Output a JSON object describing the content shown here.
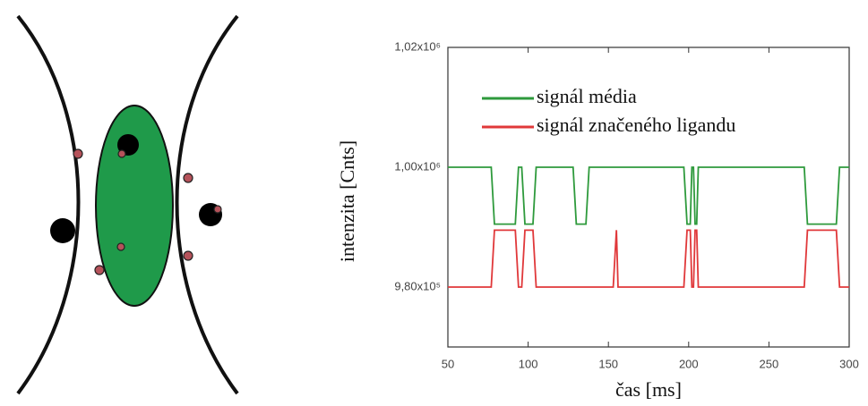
{
  "chart_data": {
    "type": "line",
    "xlabel": "čas [ms]",
    "ylabel": "intenzita [Cnts]",
    "xlim": [
      50,
      300
    ],
    "xticks": [
      50,
      100,
      150,
      200,
      250,
      300
    ],
    "ylim": [
      970000,
      1020000
    ],
    "yticks": [
      {
        "value": 980000,
        "label": "9,80x10⁵"
      },
      {
        "value": 1000000,
        "label": "1,00x10⁶"
      },
      {
        "value": 1020000,
        "label": "1,02x10⁶"
      }
    ],
    "legend": "upper left",
    "series": [
      {
        "name": "signál média",
        "color": "#2e9a3c",
        "x": [
          50,
          77,
          79,
          92,
          94,
          96,
          98,
          103,
          105,
          128,
          130,
          136,
          138,
          197,
          199,
          201,
          202,
          203,
          204,
          205,
          206,
          272,
          274,
          292,
          294,
          300
        ],
        "values": [
          1000000,
          1000000,
          990500,
          990500,
          1000000,
          1000000,
          990500,
          990500,
          1000000,
          1000000,
          990500,
          990500,
          1000000,
          1000000,
          990500,
          990500,
          1000000,
          1000000,
          990500,
          990500,
          1000000,
          1000000,
          990500,
          990500,
          1000000,
          1000000
        ]
      },
      {
        "name": "signál značeného ligandu",
        "color": "#e0383a",
        "x": [
          50,
          77,
          79,
          92,
          94,
          96,
          98,
          103,
          105,
          153,
          155,
          156,
          197,
          199,
          201,
          202,
          203,
          204,
          205,
          206,
          272,
          274,
          292,
          294,
          300
        ],
        "values": [
          980000,
          980000,
          989500,
          989500,
          980000,
          980000,
          989500,
          989500,
          980000,
          980000,
          989500,
          980000,
          980000,
          989500,
          989500,
          980000,
          980000,
          989500,
          989500,
          980000,
          980000,
          989500,
          989500,
          980000,
          980000
        ]
      }
    ]
  }
}
